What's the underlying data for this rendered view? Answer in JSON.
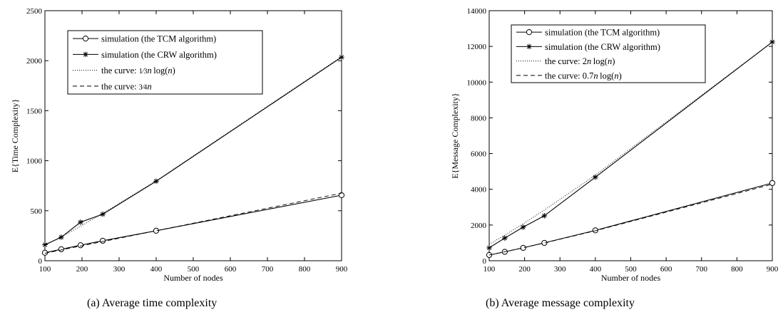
{
  "chart_data": [
    {
      "type": "line",
      "caption": "(a) Average time complexity",
      "xlabel": "Number of nodes",
      "ylabel": "E{Time Complexity}",
      "xlim": [
        100,
        900
      ],
      "ylim": [
        0,
        2500
      ],
      "xticks": [
        "100",
        "200",
        "300",
        "400",
        "500",
        "600",
        "700",
        "800",
        "900"
      ],
      "yticks": [
        "0",
        "500",
        "1000",
        "1500",
        "2000",
        "2500"
      ],
      "legend_position": "top-left",
      "series": [
        {
          "name": "simulation (the TCM algorithm)",
          "style": "solid",
          "marker": "circle",
          "x": [
            100,
            144,
            196,
            256,
            400,
            900
          ],
          "y": [
            80,
            115,
            155,
            200,
            300,
            655
          ]
        },
        {
          "name": "simulation (the CRW algorithm)",
          "style": "solid",
          "marker": "star",
          "x": [
            100,
            144,
            196,
            256,
            400,
            900
          ],
          "y": [
            160,
            235,
            385,
            465,
            795,
            2035
          ]
        },
        {
          "name": "the curve: ",
          "formula": "(1/3) n log(n)",
          "style": "dotted",
          "marker": "none",
          "x": [
            100,
            144,
            196,
            256,
            400,
            900
          ],
          "y": [
            154,
            239,
            345,
            473,
            799,
            2041
          ]
        },
        {
          "name": "the curve: ",
          "formula": "(3/4) n",
          "style": "dashed",
          "marker": "none",
          "x": [
            100,
            900
          ],
          "y": [
            75,
            675
          ]
        }
      ]
    },
    {
      "type": "line",
      "caption": "(b) Average message complexity",
      "xlabel": "Number of nodes",
      "ylabel": "E{Message Complexity}",
      "xlim": [
        100,
        900
      ],
      "ylim": [
        0,
        14000
      ],
      "xticks": [
        "100",
        "200",
        "300",
        "400",
        "500",
        "600",
        "700",
        "800",
        "900"
      ],
      "yticks": [
        "0",
        "2000",
        "4000",
        "6000",
        "8000",
        "10000",
        "12000",
        "14000"
      ],
      "legend_position": "top-left",
      "series": [
        {
          "name": "simulation (the TCM algorithm)",
          "style": "solid",
          "marker": "circle",
          "x": [
            100,
            144,
            196,
            256,
            400,
            900
          ],
          "y": [
            320,
            500,
            720,
            1000,
            1700,
            4350
          ]
        },
        {
          "name": "simulation (the CRW algorithm)",
          "style": "solid",
          "marker": "star",
          "x": [
            100,
            144,
            196,
            256,
            400,
            900
          ],
          "y": [
            720,
            1270,
            1880,
            2520,
            4680,
            12250
          ]
        },
        {
          "name": "the curve: ",
          "formula": "2n log(n)",
          "style": "dotted",
          "marker": "none",
          "x": [
            100,
            144,
            196,
            256,
            400,
            900
          ],
          "y": [
            921,
            1431,
            2069,
            2839,
            4793,
            12244
          ]
        },
        {
          "name": "the curve: ",
          "formula": "0.7n log(n)",
          "style": "dashed",
          "marker": "none",
          "x": [
            100,
            144,
            196,
            256,
            400,
            900
          ],
          "y": [
            322,
            501,
            724,
            994,
            1678,
            4285
          ]
        }
      ]
    }
  ]
}
